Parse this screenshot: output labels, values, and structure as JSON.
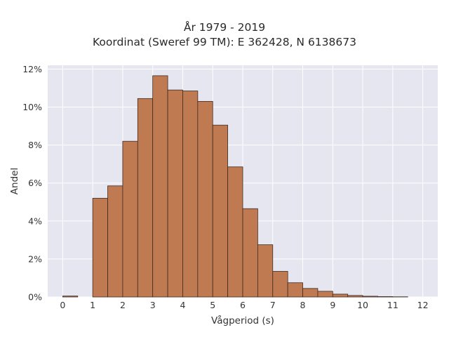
{
  "chart_data": {
    "type": "bar",
    "title": "År 1979 - 2019",
    "subtitle": "Koordinat (Sweref 99 TM): E 362428, N 6138673",
    "xlabel": "Vågperiod (s)",
    "ylabel": "Andel",
    "xlim": [
      -0.5,
      12.5
    ],
    "ylim": [
      0,
      12.2
    ],
    "xticks": [
      0,
      1,
      2,
      3,
      4,
      5,
      6,
      7,
      8,
      9,
      10,
      11,
      12
    ],
    "yticks": [
      0,
      2,
      4,
      6,
      8,
      10,
      12
    ],
    "ytick_labels": [
      "0%",
      "2%",
      "4%",
      "6%",
      "8%",
      "10%",
      "12%"
    ],
    "bin_width": 0.5,
    "bins": [
      {
        "x0": 0.0,
        "value": 0.05
      },
      {
        "x0": 0.5,
        "value": 0.0
      },
      {
        "x0": 1.0,
        "value": 5.2
      },
      {
        "x0": 1.5,
        "value": 5.85
      },
      {
        "x0": 2.0,
        "value": 8.2
      },
      {
        "x0": 2.5,
        "value": 10.45
      },
      {
        "x0": 3.0,
        "value": 11.65
      },
      {
        "x0": 3.5,
        "value": 10.9
      },
      {
        "x0": 4.0,
        "value": 10.85
      },
      {
        "x0": 4.5,
        "value": 10.3
      },
      {
        "x0": 5.0,
        "value": 9.05
      },
      {
        "x0": 5.5,
        "value": 6.85
      },
      {
        "x0": 6.0,
        "value": 4.65
      },
      {
        "x0": 6.5,
        "value": 2.75
      },
      {
        "x0": 7.0,
        "value": 1.35
      },
      {
        "x0": 7.5,
        "value": 0.75
      },
      {
        "x0": 8.0,
        "value": 0.45
      },
      {
        "x0": 8.5,
        "value": 0.3
      },
      {
        "x0": 9.0,
        "value": 0.15
      },
      {
        "x0": 9.5,
        "value": 0.08
      },
      {
        "x0": 10.0,
        "value": 0.04
      },
      {
        "x0": 10.5,
        "value": 0.02
      },
      {
        "x0": 11.0,
        "value": 0.01
      }
    ],
    "grid": true,
    "colors": {
      "bar_fill": "#c07a52",
      "bar_stroke": "#3d2b22",
      "plot_background": "#e5e6f0",
      "grid": "#ffffff"
    }
  }
}
